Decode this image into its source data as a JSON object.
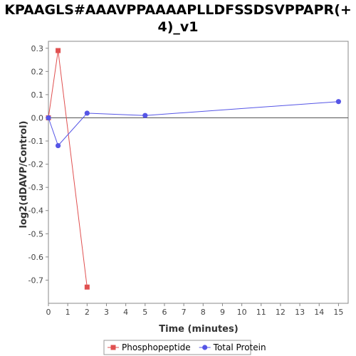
{
  "chart_data": {
    "type": "line",
    "title": "KPAAGLS#AAAVPPAAAAPLLDFSSDSVPPAPR(+ 4)_v1",
    "xlabel": "Time (minutes)",
    "ylabel": "log2(dDAVP/Control)",
    "xlim": [
      0,
      15.5
    ],
    "ylim": [
      -0.8,
      0.33
    ],
    "xticks": [
      0,
      1,
      2,
      3,
      4,
      5,
      6,
      7,
      8,
      9,
      10,
      11,
      12,
      13,
      14,
      15
    ],
    "yticks": [
      0.3,
      0.2,
      0.1,
      0.0,
      -0.1,
      -0.2,
      -0.3,
      -0.4,
      -0.5,
      -0.6,
      -0.7
    ],
    "ytick_labels": [
      "0.3",
      "0.2",
      "0.1",
      "0.0",
      "-0.1",
      "-0.2",
      "-0.3",
      "-0.4",
      "-0.5",
      "-0.6",
      "-0.7"
    ],
    "zero_line": true,
    "grid": false,
    "legend_position": "bottom",
    "series": [
      {
        "name": "Phosphopeptide",
        "color": "#e05050",
        "marker": "square",
        "x": [
          0,
          0.5,
          2
        ],
        "y": [
          0.0,
          0.29,
          -0.73
        ]
      },
      {
        "name": "Total Protein",
        "color": "#5555e6",
        "marker": "circle",
        "x": [
          0,
          0.5,
          2,
          5,
          15
        ],
        "y": [
          0.0,
          -0.12,
          0.02,
          0.01,
          0.07
        ]
      }
    ]
  }
}
